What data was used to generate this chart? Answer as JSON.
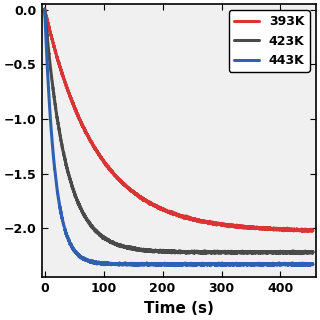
{
  "title": "",
  "xlabel": "Time (s)",
  "ylabel": "",
  "xlim": [
    -5,
    460
  ],
  "ylim": [
    -2.45,
    0.05
  ],
  "xticks": [
    0,
    100,
    200,
    300,
    400
  ],
  "yticks": [
    0.0,
    -0.5,
    -1.0,
    -1.5,
    -2.0
  ],
  "series": [
    {
      "label": "393K",
      "color": "#d93535",
      "plateau": -2.03,
      "rate": 0.0115,
      "lw": 2.2
    },
    {
      "label": "423K",
      "color": "#4a4a4a",
      "plateau": -2.22,
      "rate": 0.028,
      "lw": 2.2
    },
    {
      "label": "443K",
      "color": "#3060b0",
      "plateau": -2.33,
      "rate": 0.058,
      "lw": 2.2
    }
  ],
  "legend_loc": "upper right",
  "legend_fontsize": 9,
  "tick_fontsize": 9,
  "label_fontsize": 11,
  "plot_bg_color": "#f0f0f0",
  "background_color": "#ffffff",
  "noise_amplitude": 0.004
}
